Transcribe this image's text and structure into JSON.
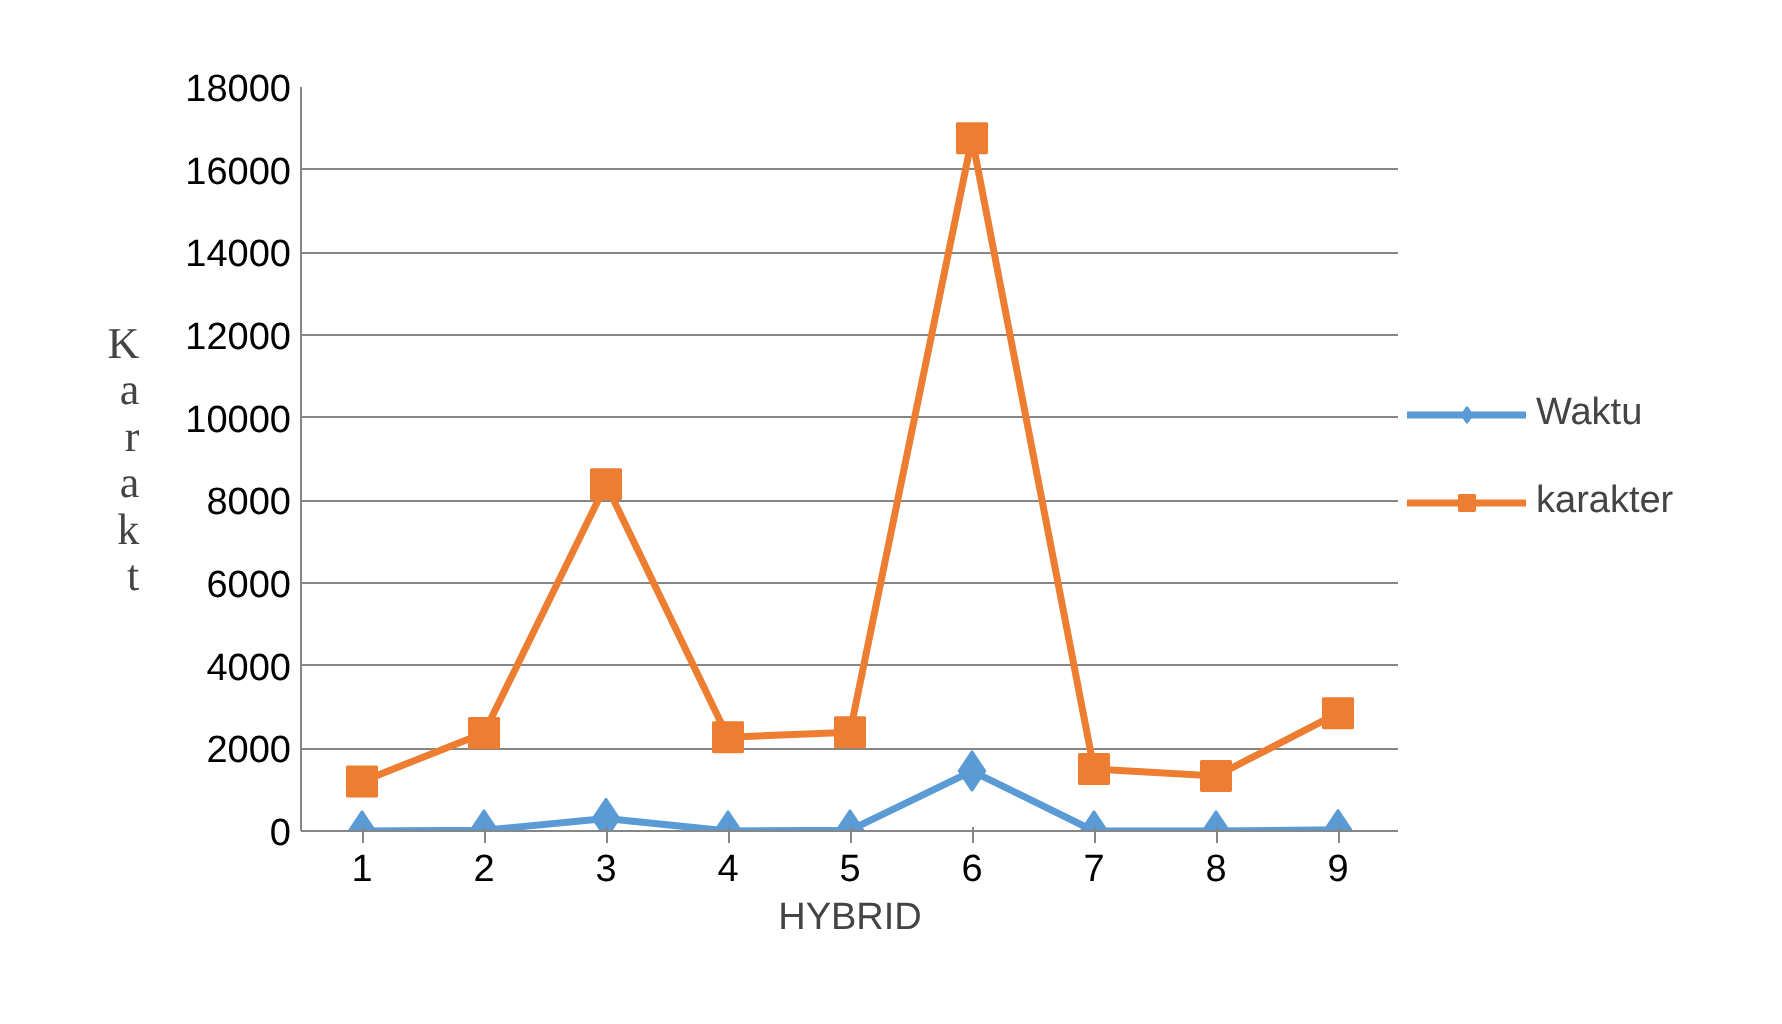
{
  "chart_data": {
    "type": "line",
    "xlabel": "HYBRID",
    "ylabel": "Karakt",
    "categories": [
      "1",
      "2",
      "3",
      "4",
      "5",
      "6",
      "7",
      "8",
      "9"
    ],
    "series": [
      {
        "name": "Waktu",
        "color": "#5b9bd5",
        "marker": "diamond",
        "values": [
          0,
          20,
          300,
          0,
          20,
          1450,
          0,
          0,
          30
        ]
      },
      {
        "name": "karakter",
        "color": "#ed7d31",
        "marker": "square",
        "values": [
          1200,
          2370,
          8390,
          2270,
          2390,
          16760,
          1500,
          1330,
          2850
        ]
      }
    ],
    "ylim": [
      0,
      18000
    ],
    "yticks": [
      0,
      2000,
      4000,
      6000,
      8000,
      10000,
      12000,
      14000,
      16000,
      18000
    ],
    "grid": "y",
    "legend": "right",
    "line_style": "solid"
  }
}
